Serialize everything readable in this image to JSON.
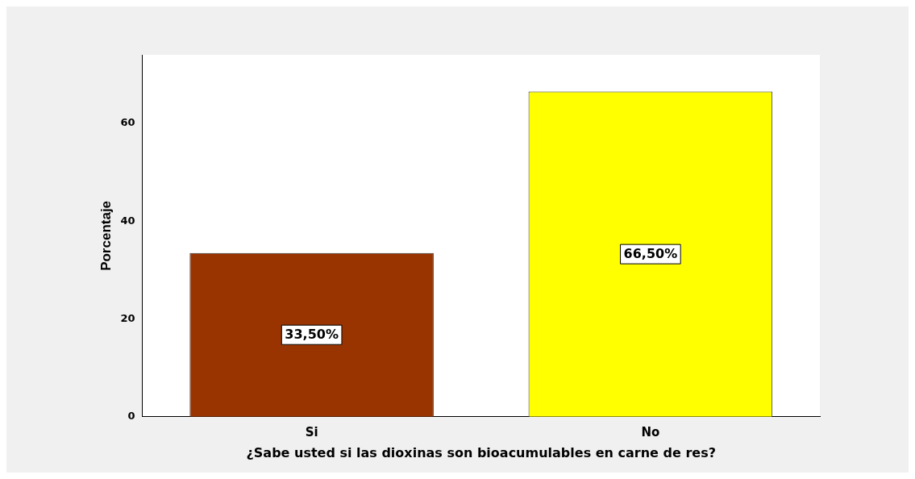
{
  "chart_data": {
    "type": "bar",
    "xlabel": "¿Sabe usted si las dioxinas son bioacumulables en carne de res?",
    "ylabel": "Porcentaje",
    "categories": [
      "Si",
      "No"
    ],
    "values": [
      33.5,
      66.5
    ],
    "colors": [
      "#993300",
      "#ffff00"
    ],
    "value_labels": [
      "33,50%",
      "66,50%"
    ],
    "ylim": [
      0,
      74
    ],
    "yticks": [
      0,
      20,
      40,
      60
    ],
    "grid": false,
    "legend": false
  }
}
